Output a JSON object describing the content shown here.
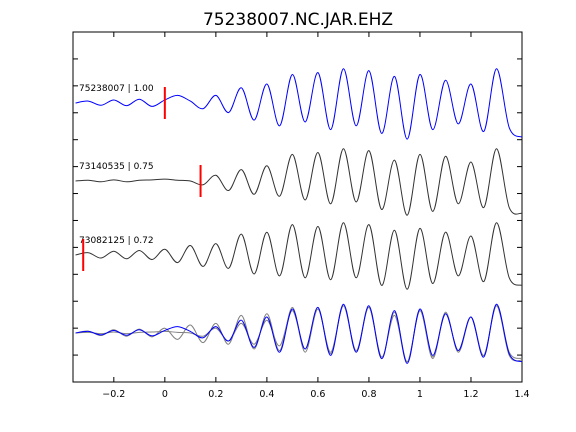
{
  "chart_data": {
    "type": "line",
    "title": "75238007.NC.JAR.EHZ",
    "xlabel": "",
    "ylabel": "",
    "xlim": [
      -0.36,
      1.4
    ],
    "x_ticks": [
      -0.2,
      0,
      0.2,
      0.4,
      0.6,
      0.8,
      1,
      1.2,
      1.4
    ],
    "x_tick_labels": [
      "−0.2",
      "0",
      "0.2",
      "0.4",
      "0.6",
      "0.8",
      "1",
      "1.2",
      "1.4"
    ],
    "y_tick_count": 12,
    "grid": false,
    "legend": "none",
    "series": [
      {
        "name": "75238007",
        "label": "75238007 | 1.00",
        "color": "#0000ff",
        "pick_time": 0.0,
        "x": [
          -0.35,
          -0.3,
          -0.25,
          -0.2,
          -0.15,
          -0.1,
          -0.05,
          0,
          0.05,
          0.1,
          0.15,
          0.2,
          0.25,
          0.3,
          0.35,
          0.4,
          0.45,
          0.5,
          0.55,
          0.6,
          0.65,
          0.7,
          0.75,
          0.8,
          0.85,
          0.9,
          0.95,
          1,
          1.05,
          1.1,
          1.15,
          1.2,
          1.25,
          1.3,
          1.35,
          1.4
        ],
        "y": [
          0.0,
          0.05,
          -0.06,
          0.08,
          -0.07,
          0.1,
          -0.09,
          0.08,
          0.2,
          0.05,
          -0.15,
          0.2,
          -0.25,
          0.4,
          -0.45,
          0.5,
          -0.6,
          0.75,
          -0.5,
          0.8,
          -0.7,
          0.9,
          -0.6,
          0.85,
          -0.8,
          0.7,
          -0.95,
          0.75,
          -0.7,
          0.6,
          -0.55,
          0.5,
          -0.75,
          0.9,
          -0.65,
          -0.9
        ]
      },
      {
        "name": "73140535",
        "label": "73140535 | 0.75",
        "color": "#333333",
        "pick_time": 0.14,
        "x": [
          -0.35,
          -0.3,
          -0.25,
          -0.2,
          -0.15,
          -0.1,
          -0.05,
          0,
          0.05,
          0.1,
          0.15,
          0.2,
          0.25,
          0.3,
          0.35,
          0.4,
          0.45,
          0.5,
          0.55,
          0.6,
          0.65,
          0.7,
          0.75,
          0.8,
          0.85,
          0.9,
          0.95,
          1,
          1.05,
          1.1,
          1.15,
          1.2,
          1.25,
          1.3,
          1.35,
          1.4
        ],
        "y": [
          0.0,
          0.02,
          -0.02,
          0.03,
          -0.02,
          0.02,
          0.03,
          0.05,
          0.02,
          0.0,
          -0.1,
          0.15,
          -0.25,
          0.3,
          -0.35,
          0.4,
          -0.4,
          0.7,
          -0.5,
          0.75,
          -0.6,
          0.85,
          -0.55,
          0.8,
          -0.75,
          0.55,
          -0.9,
          0.7,
          -0.8,
          0.65,
          -0.6,
          0.5,
          -0.7,
          0.85,
          -0.7,
          -0.85
        ]
      },
      {
        "name": "73082125",
        "label": "73082125 | 0.72",
        "color": "#333333",
        "pick_time": -0.32,
        "x": [
          -0.35,
          -0.3,
          -0.25,
          -0.2,
          -0.15,
          -0.1,
          -0.05,
          0,
          0.05,
          0.1,
          0.15,
          0.2,
          0.25,
          0.3,
          0.35,
          0.4,
          0.45,
          0.5,
          0.55,
          0.6,
          0.65,
          0.7,
          0.75,
          0.8,
          0.85,
          0.9,
          0.95,
          1,
          1.05,
          1.1,
          1.15,
          1.2,
          1.25,
          1.3,
          1.35,
          1.4
        ],
        "y": [
          0.0,
          0.06,
          -0.08,
          0.1,
          -0.1,
          0.12,
          -0.12,
          0.15,
          -0.2,
          0.25,
          -0.3,
          0.3,
          -0.35,
          0.55,
          -0.5,
          0.6,
          -0.55,
          0.8,
          -0.6,
          0.75,
          -0.65,
          0.85,
          -0.6,
          0.8,
          -0.8,
          0.65,
          -0.9,
          0.7,
          -0.75,
          0.6,
          -0.55,
          0.5,
          -0.7,
          0.85,
          -0.6,
          -0.8
        ]
      }
    ]
  }
}
